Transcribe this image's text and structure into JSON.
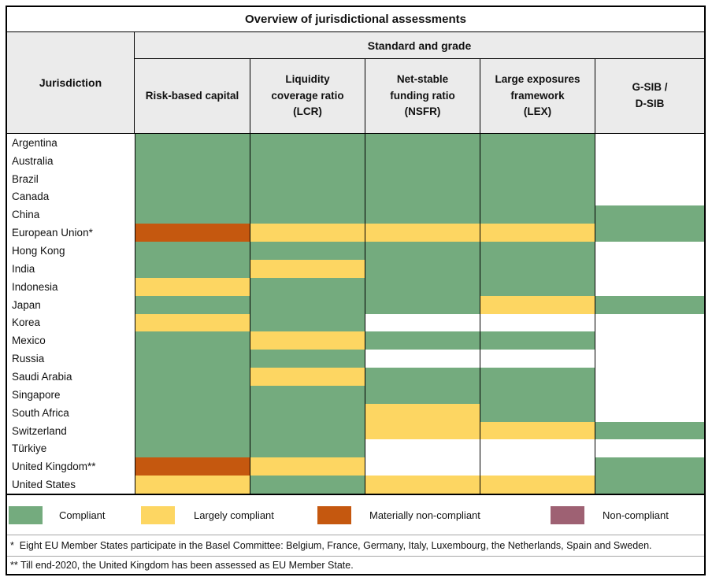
{
  "title": "Overview of jurisdictional assessments",
  "colors": {
    "compliant": "#74AB7E",
    "largely_compliant": "#FDD662",
    "materially_non_compliant": "#C5580F",
    "non_compliant": "#9E6173",
    "blank": "#FFFFFF",
    "header_bg": "#EBEBEB"
  },
  "grade_color_map": {
    "C": "compliant",
    "LC": "largely_compliant",
    "MNC": "materially_non_compliant",
    "NC": "non_compliant",
    "": "blank"
  },
  "header": {
    "jurisdiction_label": "Jurisdiction",
    "group_label": "Standard and grade",
    "columns": [
      {
        "id": "rbc",
        "lines": [
          "Risk-based capital"
        ]
      },
      {
        "id": "lcr",
        "lines": [
          "Liquidity",
          "coverage ratio",
          "(LCR)"
        ]
      },
      {
        "id": "nsfr",
        "lines": [
          "Net-stable",
          "funding ratio",
          "(NSFR)"
        ]
      },
      {
        "id": "lex",
        "lines": [
          "Large exposures",
          "framework",
          "(LEX)"
        ]
      },
      {
        "id": "gsib",
        "lines": [
          "G-SIB /",
          "D-SIB"
        ]
      }
    ]
  },
  "rows": [
    {
      "jurisdiction": "Argentina",
      "grades": [
        "C",
        "C",
        "C",
        "C",
        ""
      ]
    },
    {
      "jurisdiction": "Australia",
      "grades": [
        "C",
        "C",
        "C",
        "C",
        ""
      ]
    },
    {
      "jurisdiction": "Brazil",
      "grades": [
        "C",
        "C",
        "C",
        "C",
        ""
      ]
    },
    {
      "jurisdiction": "Canada",
      "grades": [
        "C",
        "C",
        "C",
        "C",
        ""
      ]
    },
    {
      "jurisdiction": "China",
      "grades": [
        "C",
        "C",
        "C",
        "C",
        "C"
      ]
    },
    {
      "jurisdiction": "European Union*",
      "grades": [
        "MNC",
        "LC",
        "LC",
        "LC",
        "C"
      ]
    },
    {
      "jurisdiction": "Hong Kong",
      "grades": [
        "C",
        "C",
        "C",
        "C",
        ""
      ]
    },
    {
      "jurisdiction": "India",
      "grades": [
        "C",
        "LC",
        "C",
        "C",
        ""
      ]
    },
    {
      "jurisdiction": "Indonesia",
      "grades": [
        "LC",
        "C",
        "C",
        "C",
        ""
      ]
    },
    {
      "jurisdiction": "Japan",
      "grades": [
        "C",
        "C",
        "C",
        "LC",
        "C"
      ]
    },
    {
      "jurisdiction": "Korea",
      "grades": [
        "LC",
        "C",
        "",
        "",
        ""
      ]
    },
    {
      "jurisdiction": "Mexico",
      "grades": [
        "C",
        "LC",
        "C",
        "C",
        ""
      ]
    },
    {
      "jurisdiction": "Russia",
      "grades": [
        "C",
        "C",
        "",
        "",
        ""
      ]
    },
    {
      "jurisdiction": "Saudi Arabia",
      "grades": [
        "C",
        "LC",
        "C",
        "C",
        ""
      ]
    },
    {
      "jurisdiction": "Singapore",
      "grades": [
        "C",
        "C",
        "C",
        "C",
        ""
      ]
    },
    {
      "jurisdiction": "South Africa",
      "grades": [
        "C",
        "C",
        "LC",
        "C",
        ""
      ]
    },
    {
      "jurisdiction": "Switzerland",
      "grades": [
        "C",
        "C",
        "LC",
        "LC",
        "C"
      ]
    },
    {
      "jurisdiction": "Türkiye",
      "grades": [
        "C",
        "C",
        "",
        "",
        ""
      ]
    },
    {
      "jurisdiction": "United Kingdom**",
      "grades": [
        "MNC",
        "LC",
        "",
        "",
        "C"
      ]
    },
    {
      "jurisdiction": "United States",
      "grades": [
        "LC",
        "C",
        "LC",
        "LC",
        "C"
      ]
    }
  ],
  "legend": [
    {
      "label": "Compliant",
      "grade": "C"
    },
    {
      "label": "Largely compliant",
      "grade": "LC"
    },
    {
      "label": "Materially non-compliant",
      "grade": "MNC"
    },
    {
      "label": "Non-compliant",
      "grade": "NC"
    }
  ],
  "footnotes": [
    "*  Eight EU Member States participate in the Basel Committee: Belgium, France, Germany, Italy, Luxembourg, the Netherlands, Spain and Sweden.",
    "** Till end-2020, the United Kingdom has been assessed as EU Member State."
  ]
}
